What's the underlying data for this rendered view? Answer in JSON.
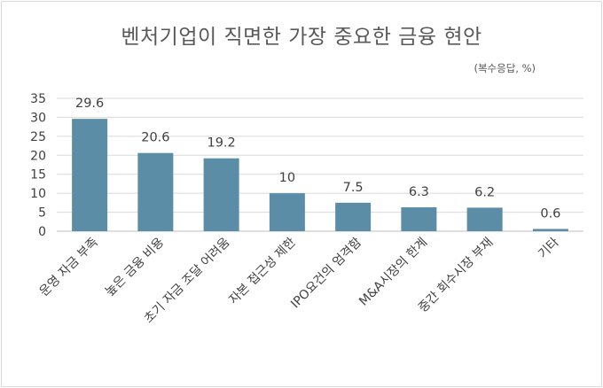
{
  "chart_data": {
    "type": "bar",
    "title": "벤처기업이 직면한 가장 중요한 금융 현안",
    "subtitle": "(복수응답, %)",
    "xlabel": "",
    "ylabel": "",
    "categories": [
      "운영 자금 부족",
      "높은 금융 비용",
      "초기 자금 조달 어려움",
      "자본 접근성 제한",
      "IPO요건의 엄격함",
      "M&A시장의 한계",
      "중간 회수시장 부재",
      "기타"
    ],
    "values": [
      29.6,
      20.6,
      19.2,
      10,
      7.5,
      6.3,
      6.2,
      0.6
    ],
    "value_labels": [
      "29.6",
      "20.6",
      "19.2",
      "10",
      "7.5",
      "6.3",
      "6.2",
      "0.6"
    ],
    "yticks": [
      "0",
      "5",
      "10",
      "15",
      "20",
      "25",
      "30",
      "35"
    ],
    "ylim": [
      0,
      35
    ],
    "grid": true,
    "bar_color": "#5b8ea6"
  }
}
